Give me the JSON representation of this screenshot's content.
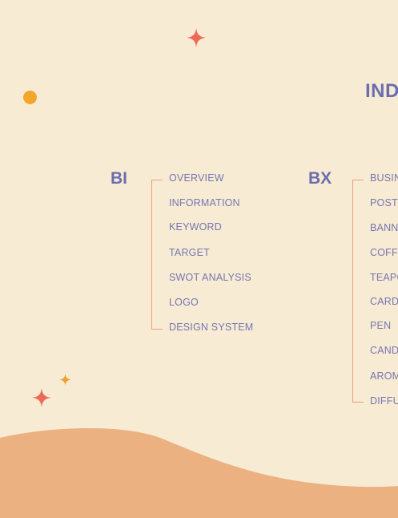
{
  "page": {
    "title_visible": "IND"
  },
  "bi": {
    "label": "BI",
    "items": [
      "OVERVIEW",
      "INFORMATION",
      "KEYWORD",
      "TARGET",
      "SWOT ANALYSIS",
      "LOGO",
      "DESIGN SYSTEM"
    ]
  },
  "bx": {
    "label": "BX",
    "items": [
      "BUSINI",
      "POSTE",
      "BANNE",
      "COFFE",
      "TEAPO",
      "CARD",
      "PEN",
      "CANDL",
      "AROMA",
      "DIFFUS"
    ]
  },
  "colors": {
    "background": "#f8ebd3",
    "accent_text": "#6a6eaf",
    "bracket": "#ee9c76",
    "wave": "#ebb181",
    "star_coral": "#ec6a56",
    "star_orange": "#f0a12e",
    "dot": "#f2a72c"
  },
  "icons": [
    "sparkle-star-icon",
    "dot-icon"
  ]
}
